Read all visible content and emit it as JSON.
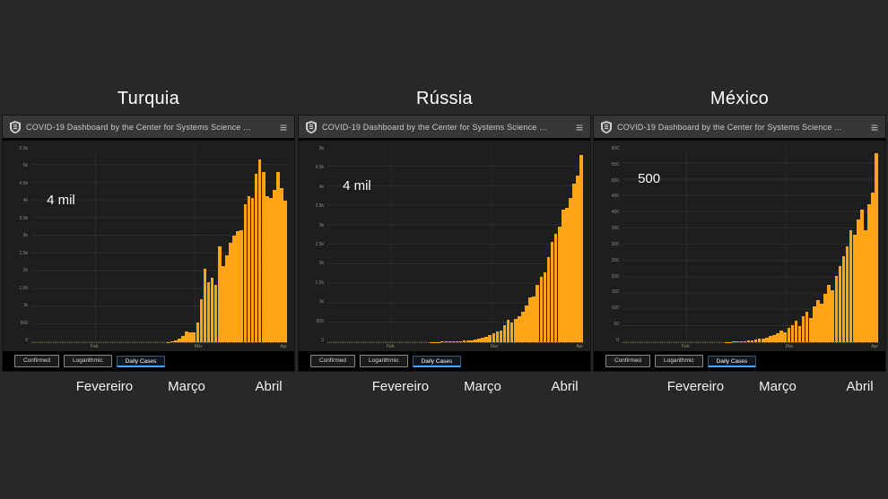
{
  "slide": {
    "background_color": "#282828"
  },
  "dashboard_header": {
    "title": "COVID-19 Dashboard by the Center for Systems Science ...",
    "logo_icon": "jhu-shield-icon",
    "menu_icon": "≡"
  },
  "tabs": {
    "items": [
      {
        "label": "Confirmed",
        "selected": false
      },
      {
        "label": "Logarithmic",
        "selected": false
      },
      {
        "label": "Daily Cases",
        "selected": true
      }
    ]
  },
  "months": [
    "Fevereiro",
    "Março",
    "Abril"
  ],
  "colors": {
    "bar": "#FFA515",
    "selected_tab_accent": "#4AA3FF",
    "chart_background": "#1E1E1E",
    "header_background": "#373737",
    "slide_background": "#282828"
  },
  "chart_data": [
    {
      "type": "bar",
      "title": "Turquia",
      "series_name": "Daily Cases",
      "annotation": {
        "label": "4 mil",
        "value": 4000
      },
      "ymax": 5500,
      "y_ticks": [
        "5.5k",
        "5k",
        "4.5k",
        "4k",
        "3.5k",
        "3k",
        "2.5k",
        "2k",
        "1.5k",
        "1k",
        "500",
        "0"
      ],
      "x_ticks": [
        {
          "label": "Feb",
          "pos_pct": 25
        },
        {
          "label": "Mar",
          "pos_pct": 64
        },
        {
          "label": "Apr",
          "pos_pct": 96
        }
      ],
      "values": [
        0,
        0,
        0,
        0,
        0,
        0,
        0,
        0,
        0,
        0,
        0,
        0,
        0,
        0,
        0,
        0,
        0,
        0,
        0,
        0,
        0,
        0,
        0,
        0,
        0,
        0,
        0,
        0,
        0,
        0,
        0,
        0,
        0,
        0,
        0,
        0,
        0,
        10,
        20,
        50,
        90,
        170,
        310,
        280,
        290,
        560,
        1200,
        2070,
        1700,
        1820,
        1610,
        2700,
        2150,
        2460,
        2790,
        3010,
        3140,
        3150,
        3890,
        4120,
        4060,
        4750,
        5140,
        4790,
        4120,
        4060,
        4280,
        4800,
        4350,
        3980
      ]
    },
    {
      "type": "bar",
      "title": "Rússia",
      "series_name": "Daily Cases",
      "annotation": {
        "label": "4 mil",
        "value": 4000
      },
      "ymax": 5000,
      "y_ticks": [
        "5k",
        "4.5k",
        "4k",
        "3.5k",
        "3k",
        "2.5k",
        "2k",
        "1.5k",
        "1k",
        "500",
        "0"
      ],
      "x_ticks": [
        {
          "label": "Feb",
          "pos_pct": 25
        },
        {
          "label": "Mar",
          "pos_pct": 64
        },
        {
          "label": "Apr",
          "pos_pct": 96
        }
      ],
      "values": [
        0,
        0,
        0,
        0,
        0,
        0,
        0,
        0,
        0,
        0,
        0,
        0,
        0,
        0,
        0,
        0,
        0,
        0,
        0,
        0,
        0,
        0,
        0,
        0,
        0,
        0,
        0,
        0,
        5,
        8,
        10,
        12,
        15,
        18,
        15,
        25,
        30,
        35,
        40,
        55,
        70,
        90,
        110,
        140,
        180,
        230,
        270,
        300,
        440,
        580,
        500,
        600,
        660,
        770,
        950,
        1150,
        1180,
        1460,
        1670,
        1790,
        2190,
        2560,
        2770,
        2950,
        3390,
        3450,
        3700,
        4070,
        4270,
        4790
      ]
    },
    {
      "type": "bar",
      "title": "México",
      "series_name": "Daily Cases",
      "annotation": {
        "label": "500",
        "value": 500
      },
      "ymax": 600,
      "y_ticks": [
        "600",
        "550",
        "500",
        "450",
        "400",
        "350",
        "300",
        "250",
        "200",
        "150",
        "100",
        "50",
        "0"
      ],
      "x_ticks": [
        {
          "label": "Feb",
          "pos_pct": 25
        },
        {
          "label": "Mar",
          "pos_pct": 64
        },
        {
          "label": "Apr",
          "pos_pct": 96
        }
      ],
      "values": [
        0,
        0,
        0,
        0,
        0,
        0,
        0,
        0,
        0,
        0,
        0,
        0,
        0,
        0,
        0,
        0,
        0,
        0,
        0,
        0,
        0,
        0,
        0,
        0,
        0,
        0,
        0,
        0,
        1,
        1,
        2,
        2,
        3,
        4,
        5,
        6,
        8,
        10,
        12,
        15,
        18,
        22,
        28,
        35,
        30,
        45,
        52,
        65,
        50,
        80,
        95,
        75,
        110,
        130,
        118,
        148,
        175,
        160,
        205,
        235,
        265,
        295,
        345,
        330,
        378,
        408,
        345,
        425,
        460,
        580
      ]
    }
  ]
}
